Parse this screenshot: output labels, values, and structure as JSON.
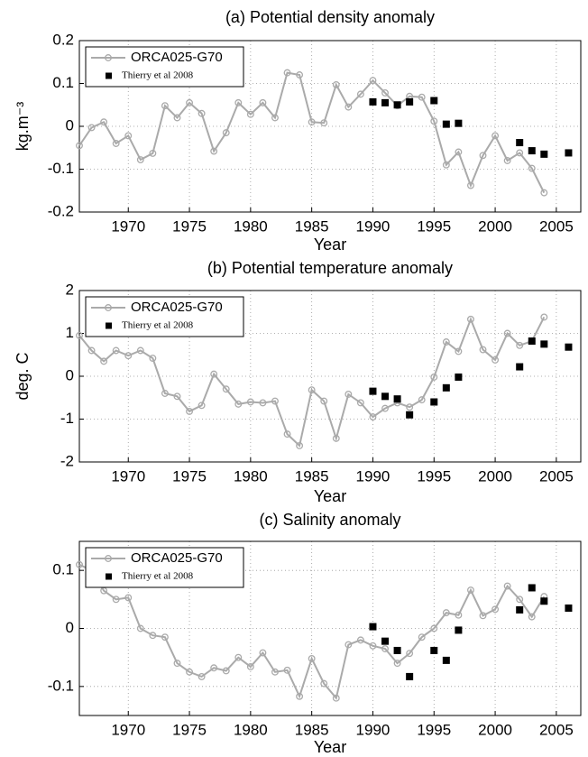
{
  "chart_data": [
    {
      "type": "line",
      "title": "(a) Potential density anomaly",
      "xlabel": "Year",
      "ylabel": "kg.m⁻³",
      "xlim": [
        1966,
        2007
      ],
      "xticks": [
        1970,
        1975,
        1980,
        1985,
        1990,
        1995,
        2000,
        2005
      ],
      "ylim": [
        -0.2,
        0.2
      ],
      "yticks": [
        -0.2,
        -0.1,
        0,
        0.1,
        0.2
      ],
      "grid": true,
      "legend": "upper left",
      "series": [
        {
          "name": "ORCA025-G70",
          "color": "#aaaaaa",
          "marker": "circle",
          "x": [
            1966,
            1967,
            1968,
            1969,
            1970,
            1971,
            1972,
            1973,
            1974,
            1975,
            1976,
            1977,
            1978,
            1979,
            1980,
            1981,
            1982,
            1983,
            1984,
            1985,
            1986,
            1987,
            1988,
            1989,
            1990,
            1991,
            1992,
            1993,
            1994,
            1995,
            1996,
            1997,
            1998,
            1999,
            2000,
            2001,
            2002,
            2003,
            2004
          ],
          "values": [
            -0.045,
            -0.003,
            0.01,
            -0.04,
            -0.022,
            -0.078,
            -0.063,
            0.048,
            0.02,
            0.055,
            0.03,
            -0.058,
            -0.015,
            0.055,
            0.028,
            0.055,
            0.02,
            0.125,
            0.12,
            0.01,
            0.008,
            0.097,
            0.045,
            0.075,
            0.107,
            0.078,
            0.048,
            0.07,
            0.068,
            0.012,
            -0.09,
            -0.06,
            -0.138,
            -0.068,
            -0.022,
            -0.08,
            -0.062,
            -0.098,
            -0.155
          ]
        },
        {
          "name": "Thierry et al 2008",
          "color": "#000000",
          "marker": "square",
          "x": [
            1990,
            1991,
            1992,
            1993,
            1995,
            1996,
            1997,
            2002,
            2003,
            2004,
            2006
          ],
          "values": [
            0.057,
            0.055,
            0.05,
            0.057,
            0.06,
            0.005,
            0.007,
            -0.038,
            -0.057,
            -0.065,
            -0.062
          ]
        }
      ]
    },
    {
      "type": "line",
      "title": "(b) Potential temperature anomaly",
      "xlabel": "Year",
      "ylabel": "deg. C",
      "xlim": [
        1966,
        2007
      ],
      "xticks": [
        1970,
        1975,
        1980,
        1985,
        1990,
        1995,
        2000,
        2005
      ],
      "ylim": [
        -2,
        2
      ],
      "yticks": [
        -2,
        -1,
        0,
        1,
        2
      ],
      "grid": true,
      "legend": "upper left",
      "series": [
        {
          "name": "ORCA025-G70",
          "color": "#aaaaaa",
          "marker": "circle",
          "x": [
            1966,
            1967,
            1968,
            1969,
            1970,
            1971,
            1972,
            1973,
            1974,
            1975,
            1976,
            1977,
            1978,
            1979,
            1980,
            1981,
            1982,
            1983,
            1984,
            1985,
            1986,
            1987,
            1988,
            1989,
            1990,
            1991,
            1992,
            1993,
            1994,
            1995,
            1996,
            1997,
            1998,
            1999,
            2000,
            2001,
            2002,
            2003,
            2004
          ],
          "values": [
            0.95,
            0.6,
            0.35,
            0.6,
            0.48,
            0.6,
            0.42,
            -0.4,
            -0.47,
            -0.82,
            -0.68,
            0.05,
            -0.3,
            -0.65,
            -0.6,
            -0.62,
            -0.58,
            -1.35,
            -1.62,
            -0.32,
            -0.58,
            -1.45,
            -0.42,
            -0.62,
            -0.95,
            -0.75,
            -0.62,
            -0.72,
            -0.55,
            -0.02,
            0.8,
            0.58,
            1.33,
            0.62,
            0.38,
            1.0,
            0.72,
            0.82,
            1.38
          ]
        },
        {
          "name": "Thierry et al 2008",
          "color": "#000000",
          "marker": "square",
          "x": [
            1990,
            1991,
            1992,
            1993,
            1995,
            1996,
            1997,
            2002,
            2003,
            2004,
            2006
          ],
          "values": [
            -0.35,
            -0.47,
            -0.53,
            -0.9,
            -0.6,
            -0.27,
            -0.02,
            0.22,
            0.82,
            0.75,
            0.68
          ]
        }
      ]
    },
    {
      "type": "line",
      "title": "(c) Salinity anomaly",
      "xlabel": "Year",
      "xlim": [
        1966,
        2007
      ],
      "xticks": [
        1970,
        1975,
        1980,
        1985,
        1990,
        1995,
        2000,
        2005
      ],
      "ylim": [
        -0.15,
        0.15
      ],
      "yticks": [
        -0.1,
        0,
        0.1
      ],
      "grid": true,
      "legend": "upper left",
      "series": [
        {
          "name": "ORCA025-G70",
          "color": "#aaaaaa",
          "marker": "circle",
          "x": [
            1966,
            1967,
            1968,
            1969,
            1970,
            1971,
            1972,
            1973,
            1974,
            1975,
            1976,
            1977,
            1978,
            1979,
            1980,
            1981,
            1982,
            1983,
            1984,
            1985,
            1986,
            1987,
            1988,
            1989,
            1990,
            1991,
            1992,
            1993,
            1994,
            1995,
            1996,
            1997,
            1998,
            1999,
            2000,
            2001,
            2002,
            2003,
            2004
          ],
          "values": [
            0.11,
            0.1,
            0.065,
            0.05,
            0.053,
            0.0,
            -0.012,
            -0.015,
            -0.06,
            -0.075,
            -0.083,
            -0.068,
            -0.073,
            -0.05,
            -0.066,
            -0.042,
            -0.075,
            -0.072,
            -0.117,
            -0.052,
            -0.095,
            -0.12,
            -0.028,
            -0.02,
            -0.03,
            -0.035,
            -0.06,
            -0.043,
            -0.015,
            0.0,
            0.027,
            0.023,
            0.066,
            0.022,
            0.033,
            0.073,
            0.05,
            0.02,
            0.055
          ]
        },
        {
          "name": "Thierry et al 2008",
          "color": "#000000",
          "marker": "square",
          "x": [
            1990,
            1991,
            1992,
            1993,
            1995,
            1996,
            1997,
            2002,
            2003,
            2004,
            2006
          ],
          "values": [
            0.003,
            -0.022,
            -0.038,
            -0.083,
            -0.038,
            -0.055,
            -0.003,
            0.032,
            0.07,
            0.047,
            0.035
          ]
        }
      ]
    }
  ]
}
